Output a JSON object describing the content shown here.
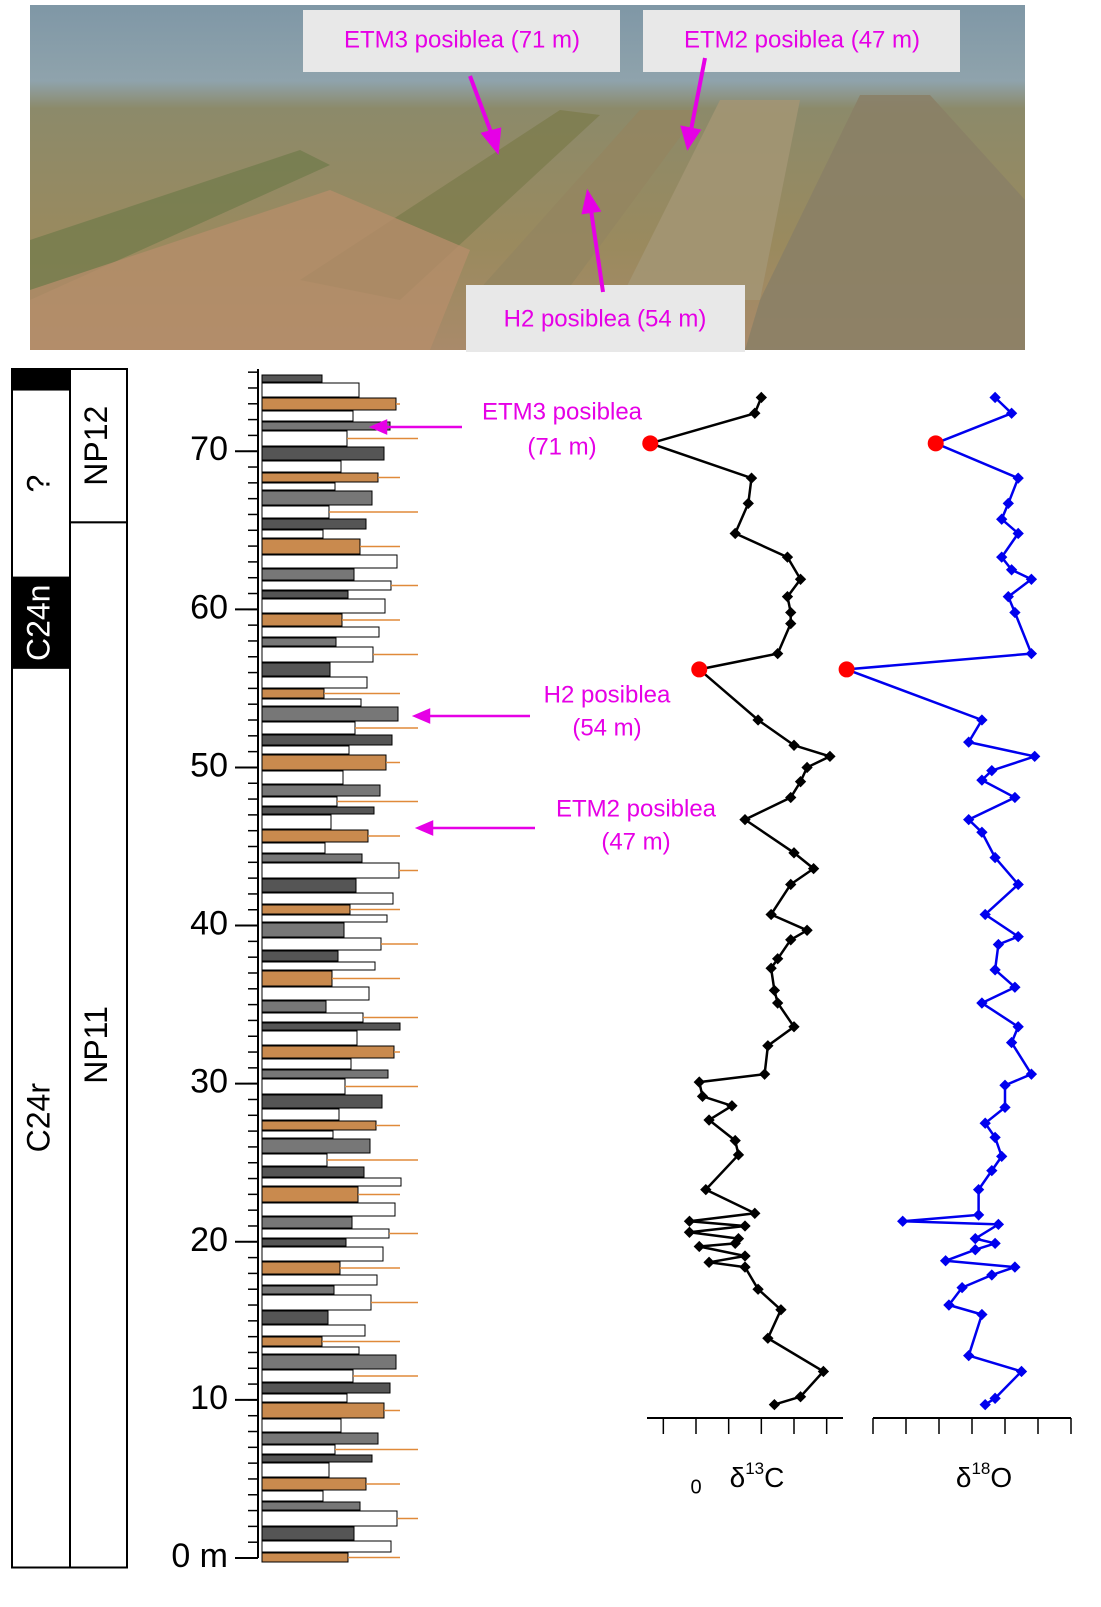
{
  "photo": {
    "labels": [
      "ETM3 posiblea (71 m)",
      "ETM2 posiblea (47 m)",
      "H2 posiblea (54 m)"
    ]
  },
  "chart_data": {
    "type": "line",
    "ylim": [
      -0.6,
      75.2
    ],
    "yticks": [
      {
        "value": 0,
        "label": "0 m"
      },
      10,
      20,
      30,
      40,
      50,
      60,
      70
    ],
    "yminor": 1,
    "magnetozones": [
      {
        "label": null,
        "top": 75.2,
        "base": 73.9,
        "color": "#000000"
      },
      {
        "label": "?",
        "top": 73.9,
        "base": 62,
        "color": "#ffffff"
      },
      {
        "label": "C24n",
        "top": 62,
        "base": 56.3,
        "color": "#000000"
      },
      {
        "label": "C24r",
        "top": 56.3,
        "base": -0.6,
        "color": "#ffffff"
      }
    ],
    "nannozones": [
      {
        "label": "NP12",
        "top": 75.2,
        "base": 65.5
      },
      {
        "label": "NP11",
        "top": 65.5,
        "base": -0.6
      }
    ],
    "annotations": [
      {
        "lines": [
          "ETM3 posiblea",
          "(71 m)"
        ]
      },
      {
        "lines": [
          "H2 posiblea",
          "(54 m)"
        ]
      },
      {
        "lines": [
          "ETM2 posiblea",
          "(47 m)"
        ]
      }
    ],
    "highlight_color": "#ff0000",
    "series": [
      {
        "label": {
          "symbol": "δ",
          "sup": "13",
          "element": "C"
        },
        "color": "#000000",
        "xlim": [
          -1.5,
          4.5
        ],
        "xticks": [
          -1,
          0,
          1,
          2,
          3,
          4
        ],
        "labeled_ticks": [
          0
        ],
        "highlight": [
          2,
          12
        ],
        "values": [
          2.0,
          1.8,
          -1.4,
          1.7,
          1.6,
          1.2,
          2.8,
          3.2,
          2.8,
          2.9,
          2.9,
          2.5,
          0.1,
          1.9,
          3.0,
          4.1,
          3.4,
          3.2,
          2.9,
          1.5,
          3.0,
          3.6,
          2.9,
          2.3,
          3.4,
          2.9,
          2.5,
          2.3,
          2.4,
          2.5,
          3.0,
          2.2,
          2.1,
          0.1,
          0.2,
          1.1,
          0.4,
          1.2,
          1.3,
          0.3,
          1.8,
          -0.2,
          1.5,
          -0.2,
          1.3,
          1.2,
          0.1,
          1.5,
          0.4,
          1.5,
          1.9,
          2.6,
          2.2,
          3.9,
          3.2,
          2.4
        ],
        "depth": [
          73.4,
          72.4,
          70.5,
          68.3,
          66.7,
          64.8,
          63.3,
          61.9,
          60.8,
          59.8,
          59.1,
          57.2,
          56.2,
          53.0,
          51.4,
          50.7,
          50.0,
          49.1,
          48.1,
          46.7,
          44.6,
          43.6,
          42.6,
          40.7,
          39.7,
          39.1,
          37.9,
          37.3,
          35.9,
          35.1,
          33.6,
          32.4,
          30.6,
          30.1,
          29.2,
          28.6,
          27.7,
          26.4,
          25.5,
          23.3,
          21.8,
          21.3,
          21.0,
          20.6,
          20.2,
          19.9,
          19.7,
          19.1,
          18.7,
          18.4,
          17.0,
          15.7,
          13.9,
          11.8,
          10.2,
          9.7
        ]
      },
      {
        "label": {
          "symbol": "δ",
          "sup": "18",
          "element": "O"
        },
        "color": "#0000ee",
        "xlim": [
          -1,
          5
        ],
        "xticks": [
          -1,
          0,
          1,
          2,
          3,
          4,
          5
        ],
        "labeled_ticks": [],
        "highlight": [
          2,
          13
        ],
        "values": [
          2.7,
          3.2,
          0.9,
          3.4,
          3.1,
          2.9,
          3.4,
          2.9,
          3.2,
          3.8,
          3.1,
          3.3,
          3.8,
          -1.8,
          2.3,
          1.9,
          3.9,
          2.6,
          2.3,
          3.3,
          1.9,
          2.3,
          2.7,
          3.4,
          2.4,
          3.4,
          2.8,
          2.7,
          3.3,
          2.3,
          3.4,
          3.2,
          3.8,
          3.0,
          3.0,
          2.4,
          2.7,
          2.9,
          2.6,
          2.2,
          2.2,
          -0.1,
          2.8,
          2.1,
          2.7,
          2.1,
          1.2,
          3.3,
          2.6,
          1.7,
          1.3,
          2.3,
          1.9,
          3.5,
          2.7,
          2.4
        ],
        "depth": [
          73.4,
          72.4,
          70.5,
          68.3,
          66.7,
          65.7,
          64.8,
          63.3,
          62.5,
          61.9,
          60.8,
          59.8,
          57.2,
          56.2,
          53.0,
          51.6,
          50.7,
          49.8,
          49.2,
          48.1,
          46.7,
          45.9,
          44.3,
          42.6,
          40.7,
          39.3,
          38.8,
          37.2,
          36.1,
          35.1,
          33.6,
          32.6,
          30.6,
          29.9,
          28.5,
          27.5,
          26.6,
          25.4,
          24.5,
          23.3,
          21.7,
          21.3,
          21.1,
          20.2,
          19.9,
          19.5,
          18.8,
          18.4,
          17.9,
          17.1,
          16.0,
          15.4,
          12.8,
          11.8,
          10.1,
          9.7
        ]
      }
    ]
  }
}
